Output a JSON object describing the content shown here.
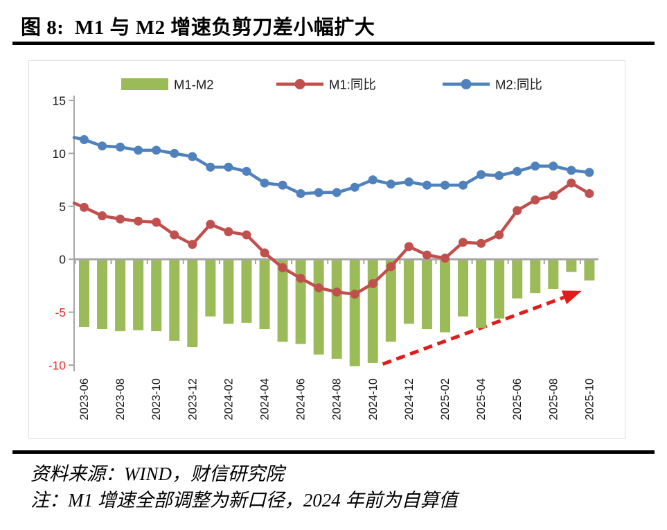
{
  "header": {
    "title": "图 8:  M1 与 M2 增速负剪刀差小幅扩大"
  },
  "footer": {
    "source": "资料来源：WIND，财信研究院",
    "note": "注：M1 增速全部调整为新口径，2024 年前为自算值"
  },
  "chart_data": {
    "type": "bar+line combo",
    "title": "",
    "categories": [
      "2023-06",
      "2023-07",
      "2023-08",
      "2023-09",
      "2023-10",
      "2023-11",
      "2023-12",
      "2024-01",
      "2024-02",
      "2024-03",
      "2024-04",
      "2024-05",
      "2024-06",
      "2024-07",
      "2024-08",
      "2024-09",
      "2024-10",
      "2024-11",
      "2024-12",
      "2025-01",
      "2025-02",
      "2025-03",
      "2025-04",
      "2025-05",
      "2025-06",
      "2025-07",
      "2025-08",
      "2025-09",
      "2025-10"
    ],
    "x_tick_labels": [
      "2023-06",
      "2023-08",
      "2023-10",
      "2023-12",
      "2024-02",
      "2024-04",
      "2024-06",
      "2024-08",
      "2024-10",
      "2024-12",
      "2025-02",
      "2025-04",
      "2025-06",
      "2025-08",
      "2025-10"
    ],
    "series": [
      {
        "name": "M1-M2",
        "type": "bar",
        "color": "#9BBB59",
        "values": [
          -6.4,
          -6.6,
          -6.8,
          -6.7,
          -6.8,
          -7.7,
          -8.3,
          -5.4,
          -6.1,
          -6.0,
          -6.6,
          -7.8,
          -8.0,
          -9.0,
          -9.4,
          -10.1,
          -9.8,
          -7.8,
          -6.1,
          -6.6,
          -6.9,
          -5.4,
          -6.5,
          -5.6,
          -3.7,
          -3.2,
          -2.8,
          -1.2,
          -2.0
        ]
      },
      {
        "name": "M1:同比",
        "type": "line",
        "color": "#C0504D",
        "axis_stub": 5.3,
        "values": [
          4.9,
          4.1,
          3.8,
          3.6,
          3.5,
          2.3,
          1.4,
          3.3,
          2.6,
          2.3,
          0.6,
          -0.8,
          -1.8,
          -2.7,
          -3.1,
          -3.3,
          -2.3,
          -0.7,
          1.2,
          0.4,
          0.1,
          1.6,
          1.5,
          2.3,
          4.6,
          5.6,
          6.0,
          7.2,
          6.2
        ]
      },
      {
        "name": "M2:同比",
        "type": "line",
        "color": "#4F81BD",
        "axis_stub": 11.5,
        "values": [
          11.3,
          10.7,
          10.6,
          10.3,
          10.3,
          10.0,
          9.7,
          8.7,
          8.7,
          8.3,
          7.2,
          7.0,
          6.2,
          6.3,
          6.3,
          6.8,
          7.5,
          7.1,
          7.3,
          7.0,
          7.0,
          7.0,
          8.0,
          7.9,
          8.3,
          8.8,
          8.8,
          8.4,
          8.2
        ]
      }
    ],
    "ylim": [
      -10,
      15
    ],
    "y_ticks": [
      15,
      10,
      5,
      0,
      -5,
      -10
    ],
    "grid": "off",
    "legend_position": "top",
    "axis_color": "#A6A6A6",
    "tick_label_color": "#1a1a1a",
    "negative_tick_color": "#EE2E2E",
    "annotation_arrow": {
      "color": "#E21B1B",
      "from": {
        "index": 16.55,
        "value": -9.9
      },
      "to": {
        "index": 26.6,
        "value": -3.6
      }
    },
    "legend": [
      {
        "label": "M1-M2",
        "swatch": "bar",
        "x": 133
      },
      {
        "label": "M1:同比",
        "swatch": "line",
        "x": 357
      },
      {
        "label": "M2:同比",
        "swatch": "line",
        "x": 597
      }
    ]
  }
}
